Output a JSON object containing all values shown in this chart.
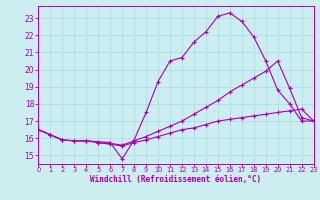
{
  "background_color": "#cceef0",
  "grid_color": "#aadddf",
  "line_color": "#aa00aa",
  "xlabel": "Windchill (Refroidissement éolien,°C)",
  "xlim": [
    0,
    23
  ],
  "ylim": [
    14.5,
    23.7
  ],
  "yticks": [
    15,
    16,
    17,
    18,
    19,
    20,
    21,
    22,
    23
  ],
  "xticks": [
    0,
    1,
    2,
    3,
    4,
    5,
    6,
    7,
    8,
    9,
    10,
    11,
    12,
    13,
    14,
    15,
    16,
    17,
    18,
    19,
    20,
    21,
    22,
    23
  ],
  "line1_x": [
    0,
    1,
    2,
    3,
    4,
    5,
    6,
    7,
    8,
    9,
    10,
    11,
    12,
    13,
    14,
    15,
    16,
    17,
    18,
    19,
    20,
    21,
    22,
    23
  ],
  "line1_y": [
    16.5,
    16.2,
    15.9,
    15.85,
    15.85,
    15.8,
    15.75,
    14.8,
    15.9,
    17.5,
    19.3,
    20.5,
    20.7,
    21.6,
    22.2,
    23.1,
    23.3,
    22.8,
    21.9,
    20.5,
    18.8,
    18.0,
    17.0,
    17.0
  ],
  "line2_x": [
    0,
    1,
    2,
    3,
    4,
    5,
    6,
    7,
    8,
    9,
    10,
    11,
    12,
    13,
    14,
    15,
    16,
    17,
    18,
    19,
    20,
    21,
    22,
    23
  ],
  "line2_y": [
    16.5,
    16.2,
    15.9,
    15.85,
    15.85,
    15.75,
    15.7,
    15.6,
    15.85,
    16.1,
    16.4,
    16.7,
    17.0,
    17.4,
    17.8,
    18.2,
    18.7,
    19.1,
    19.5,
    19.9,
    20.5,
    18.9,
    17.2,
    17.0
  ],
  "line3_x": [
    0,
    1,
    2,
    3,
    4,
    5,
    6,
    7,
    8,
    9,
    10,
    11,
    12,
    13,
    14,
    15,
    16,
    17,
    18,
    19,
    20,
    21,
    22,
    23
  ],
  "line3_y": [
    16.5,
    16.2,
    15.9,
    15.85,
    15.85,
    15.75,
    15.65,
    15.55,
    15.75,
    15.9,
    16.1,
    16.3,
    16.5,
    16.6,
    16.8,
    17.0,
    17.1,
    17.2,
    17.3,
    17.4,
    17.5,
    17.6,
    17.7,
    17.0
  ]
}
